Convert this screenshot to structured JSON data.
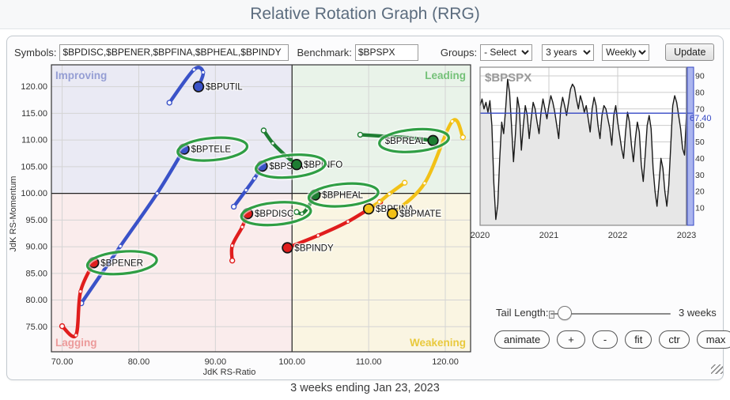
{
  "header": {
    "title": "Relative Rotation Graph (RRG)"
  },
  "toolbar": {
    "symbols_label": "Symbols:",
    "symbols_value": "$BPDISC,$BPENER,$BPFINA,$BPHEAL,$BPINDY",
    "benchmark_label": "Benchmark:",
    "benchmark_value": "$BPSPX",
    "groups_label": "Groups:",
    "groups_value": "- Select -",
    "period_value": "3 years",
    "frequency_value": "Weekly",
    "update_label": "Update"
  },
  "controls": {
    "tail_length_label": "Tail Length:",
    "tail_length_value": "3 weeks",
    "buttons": [
      "animate",
      "+",
      "-",
      "fit",
      "ctr",
      "max"
    ]
  },
  "caption": "3 weeks ending Jan 23, 2023",
  "colors": {
    "blue": "#3a52c8",
    "green": "#1e7d32",
    "red": "#e01d1d",
    "yellow": "#f2c117",
    "annotation": "#2f9e44",
    "crosshair": "#222222",
    "grid": "#d4d4d4",
    "quad_improving_bg": "#eaeaf4",
    "quad_leading_bg": "#e9f3e9",
    "quad_lagging_bg": "#faecec",
    "quad_weakening_bg": "#faf5e2",
    "quad_improving_fg": "#959ed4",
    "quad_leading_fg": "#74c178",
    "quad_lagging_fg": "#ec9a9a",
    "quad_weakening_fg": "#e9c93d",
    "benchmark_line": "#1a1a1a",
    "benchmark_fill": "#e7e7e7",
    "level_blue": "#3547c4"
  },
  "chart_data": [
    {
      "type": "scatter",
      "name": "rrg",
      "xlabel": "JdK RS-Ratio",
      "ylabel": "JdK RS-Momentum",
      "xlim": [
        68.6,
        123.3
      ],
      "ylim": [
        70.3,
        124.1
      ],
      "x_ticks": [
        70,
        80,
        90,
        100,
        110,
        120
      ],
      "x_tick_labels": [
        "70.00",
        "80.00",
        "90.00",
        "100.00",
        "110.00",
        "120.00"
      ],
      "y_ticks": [
        75,
        80,
        85,
        90,
        95,
        100,
        105,
        110,
        115,
        120
      ],
      "y_tick_labels": [
        "75.00",
        "80.00",
        "85.00",
        "90.00",
        "95.00",
        "100.00",
        "105.00",
        "110.00",
        "115.00",
        "120.00"
      ],
      "center": [
        100,
        100
      ],
      "quadrants": [
        {
          "name": "Improving",
          "corner": "top-left"
        },
        {
          "name": "Leading",
          "corner": "top-right"
        },
        {
          "name": "Lagging",
          "corner": "bottom-left"
        },
        {
          "name": "Weakening",
          "corner": "bottom-right"
        }
      ],
      "series": [
        {
          "name": "$BPUTIL",
          "color": "blue",
          "circled": false,
          "label_side": "right",
          "tail": [
            [
              84.0,
              117.0
            ],
            [
              87.2,
              123.2
            ],
            [
              88.4,
              122.7
            ],
            [
              87.8,
              120.0
            ]
          ]
        },
        {
          "name": "$BPTELE",
          "color": "blue",
          "circled": true,
          "label_side": "right",
          "tail": [
            [
              72.5,
              79.4
            ],
            [
              77.6,
              90.1
            ],
            [
              82.4,
              100.0
            ],
            [
              85.9,
              108.3
            ]
          ]
        },
        {
          "name": "$BPSTA",
          "color": "blue",
          "circled": true,
          "label_side": "right",
          "tail": [
            [
              92.4,
              97.5
            ],
            [
              94.0,
              100.6
            ],
            [
              95.1,
              102.8
            ],
            [
              96.1,
              105.1
            ]
          ]
        },
        {
          "name": "$BPINFO",
          "color": "green",
          "circled": false,
          "label_side": "right",
          "tail": [
            [
              96.3,
              111.8
            ],
            [
              97.5,
              109.4
            ],
            [
              99.3,
              106.9
            ],
            [
              100.6,
              105.4
            ]
          ]
        },
        {
          "name": "$BPHEAL",
          "color": "green",
          "circled": true,
          "label_side": "right",
          "tail": [
            [
              100.6,
              96.5
            ],
            [
              101.3,
              96.2
            ],
            [
              102.0,
              97.2
            ],
            [
              103.0,
              99.7
            ]
          ]
        },
        {
          "name": "$BPREAL",
          "color": "green",
          "circled": true,
          "label_side": "left",
          "tail": [
            [
              108.9,
              111.0
            ],
            [
              112.2,
              110.7
            ],
            [
              115.5,
              110.4
            ],
            [
              118.4,
              109.9
            ]
          ]
        },
        {
          "name": "$BPDISC",
          "color": "red",
          "circled": true,
          "label_side": "right",
          "tail": [
            [
              92.2,
              87.4
            ],
            [
              92.2,
              90.2
            ],
            [
              93.5,
              93.7
            ],
            [
              94.2,
              96.2
            ]
          ]
        },
        {
          "name": "$BPENER",
          "color": "red",
          "circled": true,
          "label_side": "right",
          "tail": [
            [
              70.0,
              75.1
            ],
            [
              71.8,
              73.4
            ],
            [
              72.4,
              81.6
            ],
            [
              74.1,
              87.0
            ]
          ]
        },
        {
          "name": "$BPINDY",
          "color": "red",
          "circled": false,
          "label_side": "right",
          "tail": [
            [
              111.5,
              98.4
            ],
            [
              107.3,
              94.7
            ],
            [
              103.4,
              92.1
            ],
            [
              99.4,
              89.8
            ]
          ]
        },
        {
          "name": "$BPFINA",
          "color": "yellow",
          "circled": false,
          "label_side": "right",
          "tail": [
            [
              114.7,
              102.0
            ],
            [
              112.7,
              99.9
            ],
            [
              111.4,
              98.4
            ],
            [
              110.0,
              97.1
            ]
          ]
        },
        {
          "name": "$BPMATE",
          "color": "yellow",
          "circled": false,
          "label_side": "right",
          "tail": [
            [
              122.3,
              110.5
            ],
            [
              120.9,
              113.5
            ],
            [
              117.3,
              101.9
            ],
            [
              113.1,
              96.2
            ]
          ]
        }
      ]
    },
    {
      "type": "area",
      "name": "benchmark",
      "title": "$BPSPX",
      "x_labels": [
        "2020",
        "2021",
        "2022",
        "2023"
      ],
      "y_ticks": [
        90,
        80,
        70,
        60,
        50,
        40,
        30,
        20,
        10
      ],
      "ylim": [
        0,
        95
      ],
      "level_line": 67.4,
      "level_label": "67.40",
      "values": [
        72,
        76,
        70,
        74,
        68,
        75,
        60,
        25,
        3,
        12,
        40,
        62,
        55,
        70,
        88,
        80,
        60,
        38,
        55,
        77,
        70,
        45,
        60,
        72,
        66,
        52,
        64,
        74,
        70,
        62,
        55,
        68,
        76,
        70,
        64,
        72,
        78,
        74,
        68,
        60,
        52,
        70,
        77,
        72,
        66,
        74,
        82,
        85,
        83,
        76,
        70,
        78,
        74,
        68,
        72,
        64,
        56,
        70,
        77,
        72,
        60,
        52,
        66,
        72,
        70,
        64,
        58,
        48,
        66,
        72,
        62,
        54,
        46,
        40,
        56,
        68,
        62,
        48,
        38,
        52,
        62,
        56,
        36,
        26,
        42,
        60,
        66,
        58,
        34,
        20,
        11,
        25,
        40,
        34,
        20,
        11,
        24,
        48,
        72,
        78,
        74,
        66,
        58,
        46,
        42,
        67.4
      ]
    }
  ]
}
